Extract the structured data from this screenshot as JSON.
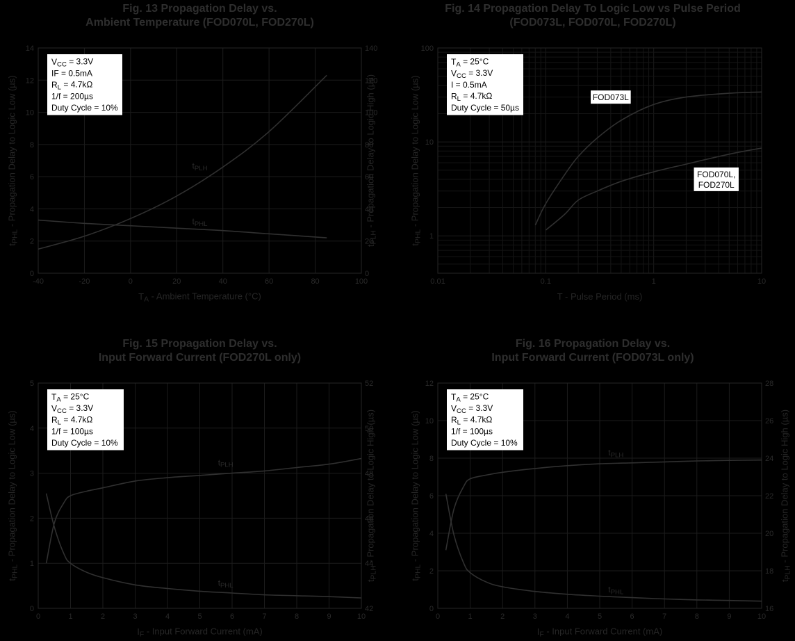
{
  "colors": {
    "background": "#000000",
    "curve": "#303030",
    "grid": "#1c1c1c",
    "text": "#2e2e2e",
    "box": "#ffffff"
  },
  "chart_data": [
    {
      "id": "fig13",
      "type": "line",
      "title": [
        "Fig. 13  Propagation Delay  vs.",
        "Ambient Temperature (FOD070L, FOD270L)"
      ],
      "xlabel": "T|A| - Ambient Temperature (°C)",
      "ylabel": "t|PHL| - Propagation Delay to Logic Low (µs)",
      "y2label": "t|PLH| - Propagation Delay to Logic High (µs)",
      "xscale": "linear",
      "xlim": [
        -40,
        100
      ],
      "ylim": [
        0,
        14
      ],
      "y2lim": [
        0,
        140
      ],
      "xticks": [
        -40,
        -20,
        0,
        20,
        40,
        60,
        80,
        100
      ],
      "yticks": [
        0,
        2,
        4,
        6,
        8,
        10,
        12,
        14
      ],
      "y2ticks": [
        0,
        20,
        40,
        60,
        80,
        100,
        120,
        140
      ],
      "grid": true,
      "infobox": [
        "V|CC| = 3.3V",
        "IF = 0.5mA",
        "R|L| = 4.7kΩ",
        "1/f = 200µs",
        "Duty Cycle = 10%"
      ],
      "series": [
        {
          "name": "t|PLH|",
          "axis": "y2",
          "x": [
            -40,
            -20,
            0,
            20,
            40,
            60,
            85
          ],
          "y": [
            15,
            23,
            34,
            48,
            66,
            88,
            123
          ],
          "label_at": [
            30,
            65
          ]
        },
        {
          "name": "t|PHL|",
          "axis": "y",
          "x": [
            -40,
            -20,
            0,
            20,
            40,
            60,
            85
          ],
          "y": [
            3.3,
            3.1,
            2.95,
            2.8,
            2.65,
            2.45,
            2.2
          ],
          "label_at": [
            30,
            3.05
          ]
        }
      ]
    },
    {
      "id": "fig14",
      "type": "line",
      "title": [
        "Fig. 14  Propagation Delay  To Logic Low vs Pulse Period",
        "(FOD073L, FOD070L, FOD270L)"
      ],
      "xlabel": "T - Pulse Period (ms)",
      "ylabel": "t|PHL| - Propagation Delay to Logic Low (µs)",
      "xscale": "log",
      "yscale": "log",
      "xlim": [
        0.01,
        10
      ],
      "ylim": [
        0.4,
        100
      ],
      "xticks": [
        0.01,
        0.1,
        1,
        10
      ],
      "xticklabels": [
        "0.01",
        "0.1",
        "1",
        "10"
      ],
      "yticks": [
        1,
        10,
        100
      ],
      "yticklabels": [
        "1",
        "10",
        "100"
      ],
      "grid": true,
      "infobox": [
        "T|A| = 25°C",
        "V|CC| = 3.3V",
        "I = 0.5mA",
        "R|L| = 4.7kΩ",
        "Duty Cycle = 50µs"
      ],
      "series": [
        {
          "name": "FOD073L",
          "x": [
            0.08,
            0.1,
            0.15,
            0.2,
            0.3,
            0.5,
            1,
            2,
            5,
            10
          ],
          "y": [
            1.3,
            2.2,
            4.5,
            7,
            11,
            17,
            25,
            30,
            33,
            34
          ],
          "boxed_label": [
            "FOD073L"
          ],
          "label_at": [
            0.4,
            30
          ]
        },
        {
          "name": "FOD070L, FOD270L",
          "x": [
            0.1,
            0.15,
            0.2,
            0.3,
            0.5,
            1,
            2,
            5,
            10
          ],
          "y": [
            1.15,
            1.7,
            2.4,
            3,
            3.8,
            4.8,
            5.8,
            7.4,
            8.6
          ],
          "boxed_label": [
            "FOD070L,",
            "FOD270L"
          ],
          "label_at": [
            3.8,
            4
          ]
        }
      ]
    },
    {
      "id": "fig15",
      "type": "line",
      "title": [
        "Fig. 15  Propagation Delay  vs.",
        "Input Forward Current (FOD270L only)"
      ],
      "xlabel": "I|F| - Input Forward Current (mA)",
      "ylabel": "t|PHL| - Propagation Delay to Logic Low (µs)",
      "y2label": "t|PLH| - Propagation Delay to Logic High (µs)",
      "xscale": "linear",
      "xlim": [
        0,
        10
      ],
      "ylim": [
        0,
        5
      ],
      "y2lim": [
        42,
        52
      ],
      "xticks": [
        0,
        1,
        2,
        3,
        4,
        5,
        6,
        7,
        8,
        9,
        10
      ],
      "yticks": [
        0,
        1,
        2,
        3,
        4,
        5
      ],
      "y2ticks": [
        42,
        44,
        46,
        48,
        50,
        52
      ],
      "grid": true,
      "infobox": [
        "T|A| = 25°C",
        "V|CC| = 3.3V",
        "R|L| = 4.7kΩ",
        "1/f = 100µs",
        "Duty Cycle = 10%"
      ],
      "series": [
        {
          "name": "t|PLH|",
          "axis": "y2",
          "x": [
            0.25,
            0.5,
            0.8,
            1,
            1.5,
            2,
            3,
            4,
            5,
            6,
            7,
            8,
            9,
            10
          ],
          "y": [
            44,
            45.8,
            46.7,
            47.0,
            47.2,
            47.35,
            47.65,
            47.8,
            47.9,
            48.0,
            48.1,
            48.25,
            48.4,
            48.65
          ],
          "label_at": [
            5.8,
            48.35
          ]
        },
        {
          "name": "t|PHL|",
          "axis": "y",
          "x": [
            0.25,
            0.5,
            0.8,
            1,
            1.5,
            2,
            3,
            4,
            5,
            6,
            7,
            8,
            9,
            10
          ],
          "y": [
            2.55,
            1.8,
            1.2,
            1.0,
            0.8,
            0.68,
            0.52,
            0.44,
            0.38,
            0.34,
            0.3,
            0.28,
            0.26,
            0.23
          ],
          "label_at": [
            5.8,
            0.5
          ]
        }
      ]
    },
    {
      "id": "fig16",
      "type": "line",
      "title": [
        "Fig. 16  Propagation Delay  vs.",
        "Input Forward Current (FOD073L only)"
      ],
      "xlabel": "I|F| - Input Forward Current (mA)",
      "ylabel": "t|PHL| - Propagation Delay to Logic Low (µs)",
      "y2label": "t|PLH| - Propagation Delay to Logic High (µs)",
      "xscale": "linear",
      "xlim": [
        0,
        10
      ],
      "ylim": [
        0,
        12
      ],
      "y2lim": [
        16,
        28
      ],
      "xticks": [
        0,
        1,
        2,
        3,
        4,
        5,
        6,
        7,
        8,
        9,
        10
      ],
      "yticks": [
        0,
        2,
        4,
        6,
        8,
        10,
        12
      ],
      "y2ticks": [
        16,
        18,
        20,
        22,
        24,
        26,
        28
      ],
      "grid": true,
      "infobox": [
        "T|A| = 25°C",
        "V|CC| = 3.3V",
        "R|L| = 4.7kΩ",
        "1/f = 100µs",
        "Duty Cycle = 10%"
      ],
      "series": [
        {
          "name": "t|PLH|",
          "axis": "y2",
          "x": [
            0.25,
            0.5,
            0.8,
            1,
            1.5,
            2,
            3,
            4,
            5,
            6,
            7,
            8,
            9,
            10
          ],
          "y": [
            19.1,
            21.3,
            22.5,
            22.9,
            23.1,
            23.25,
            23.45,
            23.6,
            23.7,
            23.75,
            23.8,
            23.85,
            23.88,
            23.9
          ],
          "label_at": [
            5.5,
            24.15
          ]
        },
        {
          "name": "t|PHL|",
          "axis": "y",
          "x": [
            0.25,
            0.5,
            0.8,
            1,
            1.5,
            2,
            3,
            4,
            5,
            6,
            7,
            8,
            9,
            10
          ],
          "y": [
            6.1,
            3.9,
            2.4,
            1.9,
            1.4,
            1.15,
            0.9,
            0.75,
            0.65,
            0.57,
            0.5,
            0.45,
            0.42,
            0.38
          ],
          "label_at": [
            5.5,
            0.85
          ]
        }
      ]
    }
  ]
}
